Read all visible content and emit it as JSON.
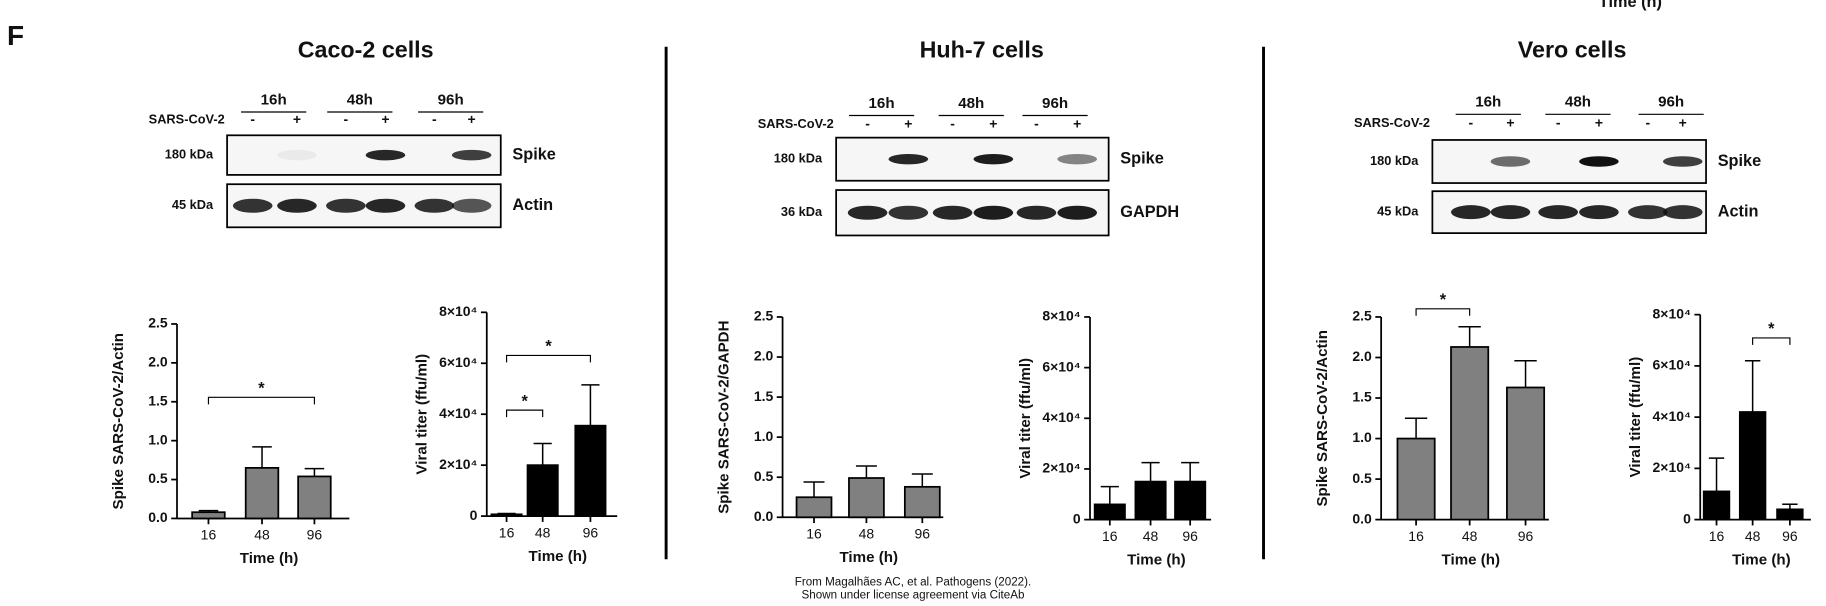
{
  "panel_label": "F",
  "stray_label": "Time (h)",
  "blots": [
    {
      "title": "Caco-2 cells",
      "times": [
        "16h",
        "48h",
        "96h"
      ],
      "treatment": "SARS-CoV-2",
      "signs": [
        "-",
        "+",
        "-",
        "+",
        "-",
        "+"
      ],
      "rows": [
        {
          "size": "180 kDa",
          "protein": "Spike"
        },
        {
          "size": "45 kDa",
          "protein": "Actin"
        }
      ]
    },
    {
      "title": "Huh-7 cells",
      "times": [
        "16h",
        "48h",
        "96h"
      ],
      "treatment": "SARS-CoV-2",
      "signs": [
        "-",
        "+",
        "-",
        "+",
        "-",
        "+"
      ],
      "rows": [
        {
          "size": "180 kDa",
          "protein": "Spike"
        },
        {
          "size": "36 kDa",
          "protein": "GAPDH"
        }
      ]
    },
    {
      "title": "Vero cells",
      "times": [
        "16h",
        "48h",
        "96h"
      ],
      "treatment": "SARS-CoV-2",
      "signs": [
        "-",
        "+",
        "-",
        "+",
        "-",
        "+"
      ],
      "rows": [
        {
          "size": "180 kDa",
          "protein": "Spike"
        },
        {
          "size": "45 kDa",
          "protein": "Actin"
        }
      ]
    }
  ],
  "chart_data": [
    {
      "type": "bar",
      "x_label": "Time (h)",
      "y_label": "Spike SARS-CoV-2/Actin",
      "categories": [
        "16",
        "48",
        "96"
      ],
      "values": [
        0.08,
        0.65,
        0.54
      ],
      "errors": [
        0.02,
        0.27,
        0.1
      ],
      "color": "#808080",
      "ylim": [
        0,
        2.5
      ],
      "yticks": [
        {
          "value": 0,
          "label": "0.0"
        },
        0.5,
        {
          "value": 1,
          "label": "1.0"
        },
        1.5,
        {
          "value": 2,
          "label": "2.0"
        },
        2.5
      ],
      "significance": [
        {
          "from": 0,
          "to": 2,
          "label": "*"
        }
      ]
    },
    {
      "type": "bar",
      "x_label": "Time (h)",
      "y_label": "Viral titer (ffu/ml)",
      "categories": [
        "16",
        "48",
        "96"
      ],
      "values": [
        700,
        20000,
        35500
      ],
      "errors": [
        300,
        8500,
        16000
      ],
      "color": "#000000",
      "ylim": [
        0,
        80000
      ],
      "yticks": [
        0,
        {
          "value": 20000,
          "label": "2×10⁴"
        },
        {
          "value": 40000,
          "label": "4×10⁴"
        },
        {
          "value": 60000,
          "label": "6×10⁴"
        },
        {
          "value": 80000,
          "label": "8×10⁴"
        }
      ],
      "significance": [
        {
          "from": 0,
          "to": 1,
          "label": "*"
        },
        {
          "from": 0,
          "to": 2,
          "label": "*"
        }
      ]
    },
    {
      "type": "bar",
      "x_label": "Time (h)",
      "y_label": "Spike SARS-CoV-2/GAPDH",
      "categories": [
        "16",
        "48",
        "96"
      ],
      "values": [
        0.25,
        0.49,
        0.38
      ],
      "errors": [
        0.19,
        0.15,
        0.16
      ],
      "color": "#808080",
      "ylim": [
        0,
        2.5
      ],
      "yticks": [
        {
          "value": 0,
          "label": "0.0"
        },
        0.5,
        {
          "value": 1,
          "label": "1.0"
        },
        1.5,
        {
          "value": 2,
          "label": "2.0"
        },
        2.5
      ],
      "significance": []
    },
    {
      "type": "bar",
      "x_label": "Time (h)",
      "y_label": "Viral titer (ffu/ml)",
      "categories": [
        "16",
        "48",
        "96"
      ],
      "values": [
        6000,
        15000,
        15000
      ],
      "errors": [
        7000,
        7500,
        7500
      ],
      "color": "#000000",
      "ylim": [
        0,
        80000
      ],
      "yticks": [
        0,
        {
          "value": 20000,
          "label": "2×10⁴"
        },
        {
          "value": 40000,
          "label": "4×10⁴"
        },
        {
          "value": 60000,
          "label": "6×10⁴"
        },
        {
          "value": 80000,
          "label": "8×10⁴"
        }
      ],
      "significance": []
    },
    {
      "type": "bar",
      "x_label": "Time (h)",
      "y_label": "Spike SARS-CoV-2/Actin",
      "categories": [
        "16",
        "48",
        "96"
      ],
      "values": [
        1.0,
        2.13,
        1.63
      ],
      "errors": [
        0.25,
        0.25,
        0.33
      ],
      "color": "#808080",
      "ylim": [
        0,
        2.5
      ],
      "yticks": [
        {
          "value": 0,
          "label": "0.0"
        },
        0.5,
        {
          "value": 1,
          "label": "1.0"
        },
        1.5,
        {
          "value": 2,
          "label": "2.0"
        },
        2.5
      ],
      "significance": [
        {
          "from": 0,
          "to": 1,
          "label": "*"
        }
      ]
    },
    {
      "type": "bar",
      "x_label": "Time (h)",
      "y_label": "Viral titer (ffu/ml)",
      "categories": [
        "16",
        "48",
        "96"
      ],
      "values": [
        11000,
        42000,
        4000
      ],
      "errors": [
        13000,
        20000,
        2000
      ],
      "color": "#000000",
      "ylim": [
        0,
        80000
      ],
      "yticks": [
        0,
        {
          "value": 20000,
          "label": "2×10⁴"
        },
        {
          "value": 40000,
          "label": "4×10⁴"
        },
        {
          "value": 60000,
          "label": "6×10⁴"
        },
        {
          "value": 80000,
          "label": "8×10⁴"
        }
      ],
      "significance": [
        {
          "from": 1,
          "to": 2,
          "label": "*"
        }
      ]
    }
  ],
  "footer": [
    "From Magalhães AC, et al. Pathogens (2022).",
    "Shown under license agreement via CiteAb"
  ]
}
